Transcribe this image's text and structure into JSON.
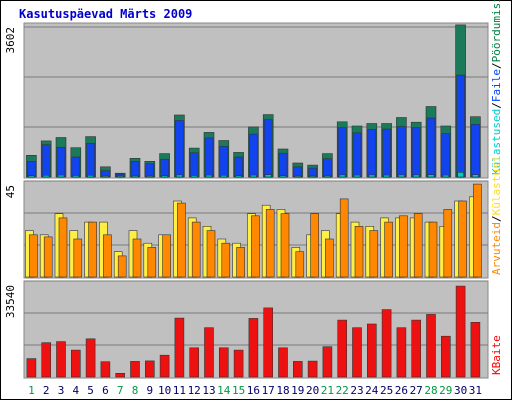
{
  "chart_data": {
    "type": "bar",
    "title": "Kasutuspäevad Märts 2009",
    "categories": [
      "1",
      "2",
      "3",
      "4",
      "5",
      "6",
      "7",
      "8",
      "9",
      "10",
      "11",
      "12",
      "13",
      "14",
      "15",
      "16",
      "17",
      "18",
      "19",
      "20",
      "21",
      "22",
      "23",
      "24",
      "25",
      "26",
      "27",
      "28",
      "29",
      "30",
      "31"
    ],
    "weekend_days": [
      "1",
      "7",
      "8",
      "14",
      "15",
      "21",
      "22",
      "28",
      "29"
    ],
    "panels": [
      {
        "id": "top",
        "ylim": [
          0,
          3602
        ],
        "scale_label": "3602",
        "legend": [
          {
            "text": "Külastused",
            "color": "#00cccc"
          },
          {
            "text": "/",
            "color": "#000000"
          },
          {
            "text": "Faile",
            "color": "#0044ff"
          },
          {
            "text": "/",
            "color": "#000000"
          },
          {
            "text": "Pöördumisi",
            "color": "#008040"
          }
        ],
        "series": [
          {
            "name": "Pöördumisi",
            "color": "#1a7a5a",
            "values": [
              510,
              850,
              930,
              690,
              950,
              240,
              90,
              440,
              370,
              550,
              1460,
              680,
              1050,
              860,
              580,
              1180,
              1470,
              660,
              330,
              280,
              550,
              1300,
              1200,
              1260,
              1260,
              1400,
              1290,
              1660,
              1200,
              3580,
              1420
            ]
          },
          {
            "name": "Faile",
            "color": "#1144ee",
            "values": [
              370,
              760,
              700,
              470,
              790,
              150,
              70,
              370,
              310,
              420,
              1330,
              570,
              920,
              720,
              470,
              1010,
              1350,
              560,
              240,
              210,
              430,
              1160,
              1040,
              1120,
              1130,
              1190,
              1160,
              1390,
              1020,
              2400,
              1240
            ]
          },
          {
            "name": "Külastused",
            "color": "#00cccc",
            "values": [
              30,
              40,
              45,
              35,
              40,
              15,
              10,
              25,
              20,
              30,
              50,
              35,
              45,
              40,
              30,
              45,
              55,
              30,
              15,
              15,
              25,
              50,
              45,
              50,
              45,
              50,
              50,
              55,
              45,
              110,
              55
            ]
          }
        ]
      },
      {
        "id": "middle",
        "ylim": [
          0,
          45
        ],
        "scale_label": "45",
        "legend": [
          {
            "text": "Arvuteid",
            "color": "#ff8800"
          },
          {
            "text": "/",
            "color": "#000000"
          },
          {
            "text": "Külastusi",
            "color": "#ffdd22"
          }
        ],
        "series": [
          {
            "name": "Külastusi",
            "color": "#ffee44",
            "values": [
              22,
              20,
              30,
              22,
              26,
              26,
              12,
              22,
              16,
              20,
              36,
              28,
              24,
              18,
              16,
              30,
              34,
              32,
              14,
              20,
              22,
              30,
              26,
              24,
              28,
              28,
              28,
              26,
              24,
              36,
              38
            ]
          },
          {
            "name": "Arvuteid",
            "color": "#ff8800",
            "values": [
              20,
              19,
              28,
              18,
              26,
              20,
              10,
              18,
              14,
              20,
              35,
              26,
              22,
              16,
              14,
              29,
              32,
              30,
              12,
              30,
              18,
              37,
              24,
              22,
              26,
              29,
              30,
              26,
              32,
              36,
              44
            ]
          }
        ]
      },
      {
        "id": "bottom",
        "ylim": [
          0,
          33540
        ],
        "scale_label": "33540",
        "legend": [
          {
            "text": "KBaite",
            "color": "#ff0000"
          }
        ],
        "series": [
          {
            "name": "KBaite",
            "color": "#ee1111",
            "values": [
              6500,
              12100,
              12500,
              9500,
              13500,
              5400,
              1300,
              5500,
              5700,
              7700,
              20800,
              10300,
              17400,
              10300,
              9500,
              20700,
              24400,
              10300,
              5500,
              5600,
              10700,
              20100,
              17400,
              18700,
              23800,
              17400,
              20100,
              22100,
              14400,
              32100,
              19300
            ]
          }
        ]
      }
    ]
  }
}
